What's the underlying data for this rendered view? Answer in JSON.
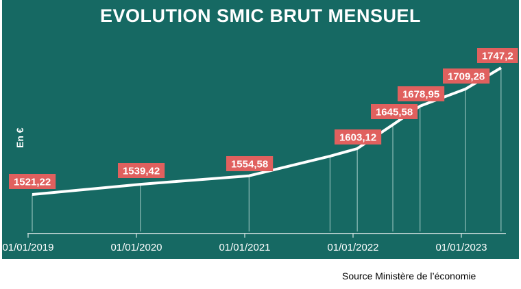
{
  "header": {
    "title": "EVOLUTION SMIC BRUT MENSUEL"
  },
  "footer": {
    "source": "Source Ministère de l’économie"
  },
  "colors": {
    "background": "#166963",
    "line": "#ffffff",
    "label_bg": "#e0605e",
    "text": "#ffffff"
  },
  "chart_data": {
    "type": "line",
    "title": "EVOLUTION SMIC BRUT MENSUEL",
    "xlabel": "",
    "ylabel": "En €",
    "x": [
      "2019-01-01",
      "2020-01-01",
      "2021-01-01",
      "2021-10-01",
      "2022-01-01",
      "2022-05-01",
      "2022-08-01",
      "2023-01-01",
      "2023-05-01"
    ],
    "values": [
      1521.22,
      1539.42,
      1554.58,
      1589.47,
      1603.12,
      1645.58,
      1678.95,
      1709.28,
      1747.2
    ],
    "data_labels": [
      "1521,22",
      "1539,42",
      "1554,58",
      null,
      "1603,12",
      "1645,58",
      "1678,95",
      "1709,28",
      "1747,2"
    ],
    "x_tick_labels": [
      "01/01/2019",
      "01/01/2020",
      "01/01/2021",
      "01/01/2022",
      "01/01/2023"
    ],
    "grid": false,
    "legend": null,
    "source": "Source Ministère de l’économie"
  }
}
